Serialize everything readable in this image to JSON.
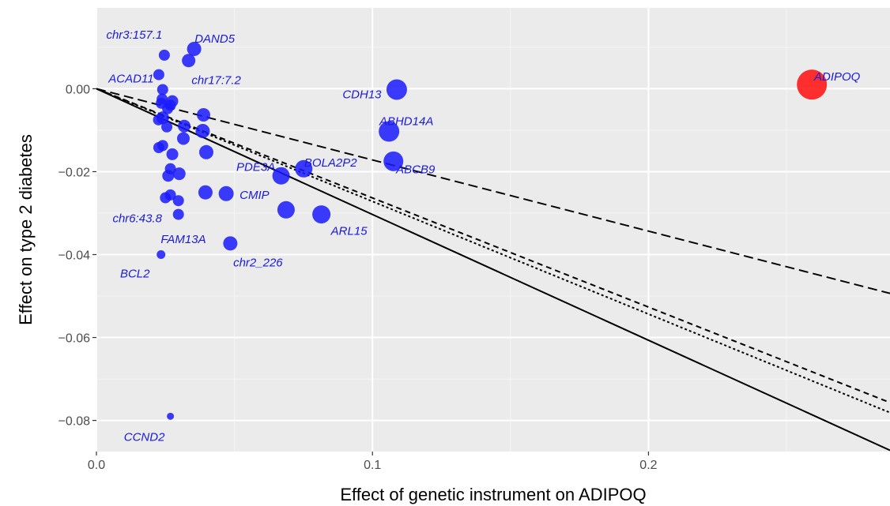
{
  "chart_data": {
    "type": "scatter",
    "title": "",
    "xlabel": "Effect of genetic instrument on  ADIPOQ",
    "ylabel": "Effect on type 2 diabetes",
    "xlim": [
      0,
      0.2875
    ],
    "ylim": [
      -0.0875,
      0.0195
    ],
    "x_ticks": [
      0.0,
      0.1,
      0.2
    ],
    "x_tick_labels": [
      "0.0",
      "0.1",
      "0.2"
    ],
    "y_ticks": [
      0.0,
      -0.02,
      -0.04,
      -0.06,
      -0.08
    ],
    "y_tick_labels": [
      "0.00",
      "−0.02",
      "−0.04",
      "−0.06",
      "−0.08"
    ],
    "grid": true,
    "legend": "none",
    "colors": {
      "panel_bg": "#ebebeb",
      "grid_major": "#ffffff",
      "grid_minor": "#f5f5f5",
      "point": "#1a1aff",
      "highlight": "#ff1a1a",
      "label": "#1a1add",
      "line": "#000000"
    },
    "points": [
      {
        "x": 0.2592,
        "y": 0.001,
        "size": 19,
        "label": "ADIPOQ",
        "highlight": true
      },
      {
        "x": 0.1088,
        "y": -0.0002,
        "size": 13,
        "label": "CDH13"
      },
      {
        "x": 0.106,
        "y": -0.0103,
        "size": 13,
        "label": "ABHD14A"
      },
      {
        "x": 0.1076,
        "y": -0.0175,
        "size": 12.5,
        "label": "ABCB9"
      },
      {
        "x": 0.0751,
        "y": -0.0193,
        "size": 11,
        "label": "BOLA2P2"
      },
      {
        "x": 0.0669,
        "y": -0.021,
        "size": 11,
        "label": "PDE3A"
      },
      {
        "x": 0.0687,
        "y": -0.0292,
        "size": 11,
        "label": "CMIP"
      },
      {
        "x": 0.0815,
        "y": -0.0303,
        "size": 11.5,
        "label": "ARL15"
      },
      {
        "x": 0.0485,
        "y": -0.0373,
        "size": 9,
        "label": "chr2_226"
      },
      {
        "x": 0.0354,
        "y": 0.0096,
        "size": 9,
        "label": "DAND5"
      },
      {
        "x": 0.0334,
        "y": 0.0068,
        "size": 8.5,
        "label": "chr17:7.2"
      },
      {
        "x": 0.0246,
        "y": 0.0081,
        "size": 7,
        "label": "chr3:157.1"
      },
      {
        "x": 0.0226,
        "y": 0.0034,
        "size": 7,
        "label": "ACAD11"
      },
      {
        "x": 0.0268,
        "y": -0.079,
        "size": 4.5,
        "label": "CCND2"
      },
      {
        "x": 0.0234,
        "y": -0.04,
        "size": 5.5,
        "label": "BCL2"
      },
      {
        "x": 0.0297,
        "y": -0.0303,
        "size": 7,
        "label": "chr6:43.8"
      },
      {
        "x": 0.0388,
        "y": -0.0063,
        "size": 8.5
      },
      {
        "x": 0.0385,
        "y": -0.0102,
        "size": 9
      },
      {
        "x": 0.0398,
        "y": -0.0153,
        "size": 9
      },
      {
        "x": 0.0395,
        "y": -0.025,
        "size": 9
      },
      {
        "x": 0.047,
        "y": -0.0253,
        "size": 9.5
      },
      {
        "x": 0.0315,
        "y": -0.012,
        "size": 8
      },
      {
        "x": 0.0318,
        "y": -0.009,
        "size": 8
      },
      {
        "x": 0.03,
        "y": -0.0205,
        "size": 8
      },
      {
        "x": 0.0275,
        "y": -0.0158,
        "size": 7.5
      },
      {
        "x": 0.0275,
        "y": -0.003,
        "size": 7.5
      },
      {
        "x": 0.0268,
        "y": -0.0193,
        "size": 7
      },
      {
        "x": 0.026,
        "y": -0.021,
        "size": 7.5
      },
      {
        "x": 0.0268,
        "y": -0.0256,
        "size": 7
      },
      {
        "x": 0.0297,
        "y": -0.027,
        "size": 7
      },
      {
        "x": 0.025,
        "y": -0.0263,
        "size": 7
      },
      {
        "x": 0.024,
        "y": -0.0137,
        "size": 7
      },
      {
        "x": 0.0226,
        "y": -0.0142,
        "size": 7
      },
      {
        "x": 0.024,
        "y": -0.007,
        "size": 8
      },
      {
        "x": 0.0225,
        "y": -0.0075,
        "size": 7
      },
      {
        "x": 0.0235,
        "y": -0.0035,
        "size": 7
      },
      {
        "x": 0.0238,
        "y": -0.0025,
        "size": 7
      },
      {
        "x": 0.024,
        "y": -0.0002,
        "size": 7
      },
      {
        "x": 0.0258,
        "y": -0.0048,
        "size": 7
      },
      {
        "x": 0.0255,
        "y": -0.0092,
        "size": 7
      },
      {
        "x": 0.0268,
        "y": -0.004,
        "size": 7
      }
    ],
    "lines": [
      {
        "style": "solid",
        "slope": -0.3033
      },
      {
        "style": "longdash",
        "slope": -0.1717
      },
      {
        "style": "dashed",
        "slope": -0.2633
      },
      {
        "style": "dotted",
        "slope": -0.2717
      }
    ]
  }
}
